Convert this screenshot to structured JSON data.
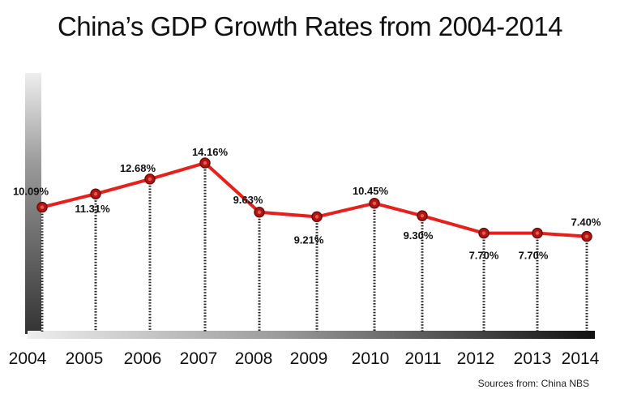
{
  "chart_data": {
    "type": "line",
    "title": "China’s GDP Growth Rates from 2004-2014",
    "xlabel": "",
    "ylabel": "",
    "categories": [
      "2004",
      "2005",
      "2006",
      "2007",
      "2008",
      "2009",
      "2010",
      "2011",
      "2012",
      "2013",
      "2014"
    ],
    "series": [
      {
        "values": [
          10.09,
          11.31,
          12.68,
          14.16,
          9.63,
          9.21,
          10.45,
          9.3,
          7.7,
          7.7,
          7.4
        ],
        "labels": [
          "10.09%",
          "11.31%",
          "12.68%",
          "14.16%",
          "9.63%",
          "9.21%",
          "10.45%",
          "9.30%",
          "7.70%",
          "7.70%",
          "7.40%"
        ],
        "color": "#e8201c"
      }
    ],
    "ylim": [
      0,
      20
    ],
    "grid": false,
    "legend": "none"
  },
  "source": "Sources from: China NBS",
  "colors": {
    "line": "#e8201c",
    "marker_fill": "#b31512",
    "marker_stroke": "#6e0d0b",
    "dotted": "#222222"
  }
}
